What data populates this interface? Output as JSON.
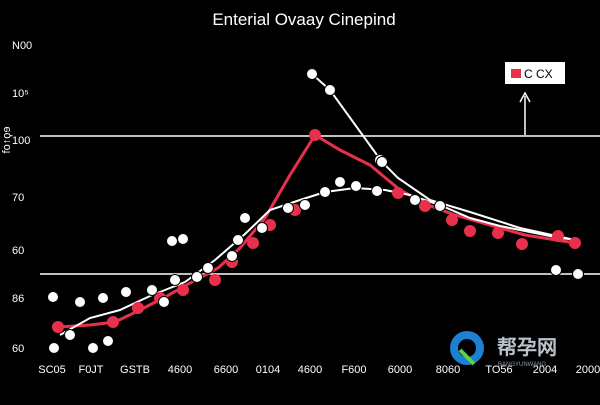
{
  "chart_data": {
    "type": "line",
    "title": "Enterial Ovaay Cinepind",
    "ylabel": "fo↑ϙɘ",
    "y_ticks": [
      "N00",
      "10⁵",
      "100",
      "70",
      "60",
      "86",
      "60"
    ],
    "x_ticks": [
      "SC05",
      "F0JT",
      "GSTB",
      "4600",
      "6600",
      "0104",
      "4600",
      "F600",
      "6000",
      "8060",
      "TO56",
      "2004",
      "2000"
    ],
    "legend": {
      "label": "C CX",
      "position": "top-right"
    },
    "hlines": [
      136,
      274
    ],
    "series": [
      {
        "color": "#e8304c",
        "points": [
          [
            58,
            327
          ],
          [
            90,
            325
          ],
          [
            115,
            322
          ],
          [
            140,
            310
          ],
          [
            165,
            297
          ],
          [
            192,
            282
          ],
          [
            218,
            268
          ],
          [
            240,
            248
          ],
          [
            265,
            218
          ],
          [
            290,
            175
          ],
          [
            315,
            135
          ],
          [
            340,
            150
          ],
          [
            370,
            165
          ],
          [
            400,
            190
          ],
          [
            428,
            205
          ],
          [
            455,
            215
          ],
          [
            490,
            225
          ],
          [
            525,
            235
          ],
          [
            575,
            243
          ]
        ],
        "markers": [
          [
            58,
            327
          ],
          [
            113,
            322
          ],
          [
            138,
            308
          ],
          [
            160,
            298
          ],
          [
            183,
            290
          ],
          [
            215,
            280
          ],
          [
            232,
            262
          ],
          [
            253,
            243
          ],
          [
            270,
            225
          ],
          [
            295,
            210
          ],
          [
            315,
            135
          ],
          [
            398,
            193
          ],
          [
            425,
            206
          ],
          [
            452,
            220
          ],
          [
            470,
            231
          ],
          [
            498,
            233
          ],
          [
            522,
            244
          ],
          [
            558,
            236
          ],
          [
            575,
            243
          ]
        ]
      },
      {
        "color": "#ffffff",
        "points": [
          [
            60,
            335
          ],
          [
            90,
            318
          ],
          [
            120,
            310
          ],
          [
            150,
            296
          ],
          [
            185,
            282
          ],
          [
            215,
            260
          ],
          [
            245,
            234
          ],
          [
            270,
            210
          ],
          [
            300,
            200
          ],
          [
            325,
            192
          ],
          [
            355,
            188
          ],
          [
            385,
            190
          ],
          [
            410,
            195
          ],
          [
            440,
            205
          ],
          [
            470,
            218
          ],
          [
            500,
            226
          ],
          [
            530,
            232
          ],
          [
            560,
            238
          ],
          [
            578,
            240
          ]
        ],
        "markers": [
          [
            53,
            297
          ],
          [
            80,
            302
          ],
          [
            103,
            298
          ],
          [
            126,
            292
          ],
          [
            152,
            290
          ],
          [
            164,
            302
          ],
          [
            175,
            280
          ],
          [
            197,
            277
          ],
          [
            208,
            268
          ],
          [
            238,
            240
          ],
          [
            245,
            218
          ],
          [
            262,
            228
          ],
          [
            288,
            208
          ],
          [
            305,
            205
          ],
          [
            325,
            192
          ],
          [
            340,
            182
          ],
          [
            356,
            186
          ],
          [
            377,
            191
          ],
          [
            415,
            200
          ],
          [
            440,
            206
          ],
          [
            70,
            335
          ],
          [
            108,
            341
          ],
          [
            172,
            241
          ],
          [
            183,
            239
          ],
          [
            232,
            256
          ],
          [
            380,
            160
          ],
          [
            556,
            270
          ],
          [
            578,
            274
          ],
          [
            54,
            348
          ],
          [
            93,
            348
          ]
        ]
      },
      {
        "color": "#ffffff",
        "points": [
          [
            312,
            74
          ],
          [
            330,
            90
          ],
          [
            382,
            162
          ],
          [
            398,
            178
          ],
          [
            430,
            200
          ],
          [
            470,
            212
          ],
          [
            520,
            228
          ],
          [
            575,
            240
          ]
        ],
        "markers": [
          [
            312,
            74
          ],
          [
            330,
            90
          ],
          [
            382,
            162
          ]
        ]
      }
    ]
  }
}
